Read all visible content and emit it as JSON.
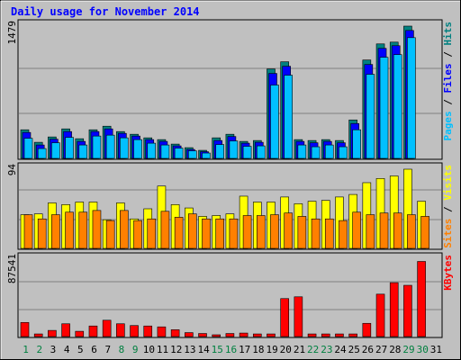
{
  "chart_data": {
    "type": "bar",
    "title": "Daily usage for November 2014",
    "categories": [
      "1",
      "2",
      "3",
      "4",
      "5",
      "6",
      "7",
      "8",
      "9",
      "10",
      "11",
      "12",
      "13",
      "14",
      "15",
      "16",
      "17",
      "18",
      "19",
      "20",
      "21",
      "22",
      "23",
      "24",
      "25",
      "26",
      "27",
      "28",
      "29",
      "30",
      "31"
    ],
    "weekend_days": [
      "1",
      "2",
      "8",
      "9",
      "15",
      "16",
      "22",
      "23",
      "29",
      "30"
    ],
    "panels": [
      {
        "id": "hits",
        "ymax_label": "1479",
        "ymax": 1479,
        "side_labels": [
          "Pages",
          "Files",
          "Hits"
        ],
        "side_colors": [
          "#00c0ff",
          "#0000ff",
          "#008080"
        ],
        "series": [
          {
            "name": "Hits",
            "color": "#008080",
            "values": [
              320,
              180,
              240,
              330,
              220,
              320,
              360,
              300,
              270,
              230,
              210,
              160,
              120,
              90,
              230,
              270,
              190,
              200,
              1000,
              1080,
              210,
              200,
              210,
              200,
              430,
              1100,
              1280,
              1300,
              1479,
              0,
              0
            ]
          },
          {
            "name": "Files",
            "color": "#0000ff",
            "values": [
              290,
              150,
              215,
              300,
              190,
              300,
              330,
              280,
              250,
              210,
              190,
              140,
              100,
              75,
              200,
              245,
              170,
              180,
              950,
              1030,
              190,
              175,
              190,
              175,
              390,
              1050,
              1230,
              1260,
              1430,
              0,
              0
            ]
          },
          {
            "name": "Pages",
            "color": "#00c0ff",
            "values": [
              225,
              110,
              175,
              235,
              150,
              250,
              260,
              230,
              210,
              170,
              150,
              115,
              85,
              60,
              155,
              195,
              135,
              140,
              820,
              930,
              150,
              130,
              150,
              130,
              320,
              940,
              1130,
              1160,
              1350,
              0,
              0
            ]
          }
        ]
      },
      {
        "id": "visits",
        "ymax_label": "94",
        "ymax": 94,
        "side_labels": [
          "Sites",
          "Visits"
        ],
        "side_colors": [
          "#ff8000",
          "#ffff00"
        ],
        "series": [
          {
            "name": "Visits",
            "color": "#ffff00",
            "values": [
              40,
              41,
              54,
              52,
              55,
              55,
              34,
              54,
              35,
              47,
              74,
              52,
              48,
              38,
              39,
              41,
              62,
              55,
              55,
              61,
              53,
              56,
              57,
              61,
              64,
              78,
              83,
              86,
              94,
              56,
              0
            ]
          },
          {
            "name": "Sites",
            "color": "#ff8000",
            "values": [
              40,
              35,
              40,
              43,
              43,
              45,
              33,
              45,
              33,
              35,
              44,
              37,
              41,
              35,
              35,
              35,
              39,
              39,
              40,
              42,
              38,
              35,
              35,
              33,
              43,
              40,
              42,
              42,
              40,
              38,
              0
            ]
          }
        ]
      },
      {
        "id": "kbytes",
        "ymax_label": "87541",
        "ymax": 87541,
        "side_labels": [
          "KBytes"
        ],
        "side_colors": [
          "#ff0000"
        ],
        "series": [
          {
            "name": "KBytes",
            "color": "#ff0000",
            "values": [
              16000,
              3000,
              7000,
              14500,
              6000,
              12000,
              18500,
              14500,
              12500,
              12000,
              11000,
              7800,
              4500,
              3500,
              2000,
              3500,
              4000,
              3000,
              3000,
              43000,
              45000,
              3000,
              3000,
              3000,
              3000,
              15000,
              48000,
              61000,
              58000,
              85000,
              0
            ]
          }
        ]
      }
    ]
  }
}
